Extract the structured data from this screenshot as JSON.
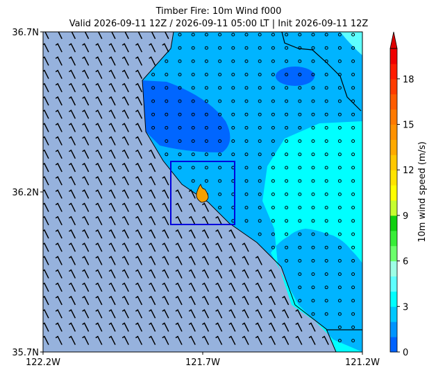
{
  "chart_data": {
    "type": "map",
    "title": "Timber Fire: 10m Wind f000",
    "subtitle": "Valid 2026-09-11 12Z / 2026-09-11 05:00 LT | Init 2026-09-11 12Z",
    "xlim": [
      -122.2,
      -121.2
    ],
    "ylim": [
      35.7,
      36.7
    ],
    "xticks": [
      {
        "value": -122.2,
        "label": "122.2W"
      },
      {
        "value": -121.7,
        "label": "121.7W"
      },
      {
        "value": -121.2,
        "label": "121.2W"
      }
    ],
    "yticks": [
      {
        "value": 35.7,
        "label": "35.7N"
      },
      {
        "value": 36.2,
        "label": "36.2N"
      },
      {
        "value": 36.7,
        "label": "36.7N"
      }
    ],
    "colorbar": {
      "label": "10m wind speed (m/s)",
      "lim": [
        0,
        20
      ],
      "ticks": [
        0,
        3,
        6,
        9,
        12,
        15,
        18
      ],
      "extend": "max",
      "colors": [
        "#0062ff",
        "#0094ff",
        "#00c8ff",
        "#00ffff",
        "#5effff",
        "#9effe6",
        "#6cff6c",
        "#38ee38",
        "#10d010",
        "#c6ff30",
        "#ffff00",
        "#ffe400",
        "#ffc800",
        "#ffaa00",
        "#ff9200",
        "#ff7a00",
        "#ff5c00",
        "#ff3c00",
        "#ff1c00",
        "#f00000"
      ],
      "extend_color": "#dd0000"
    }
  }
}
